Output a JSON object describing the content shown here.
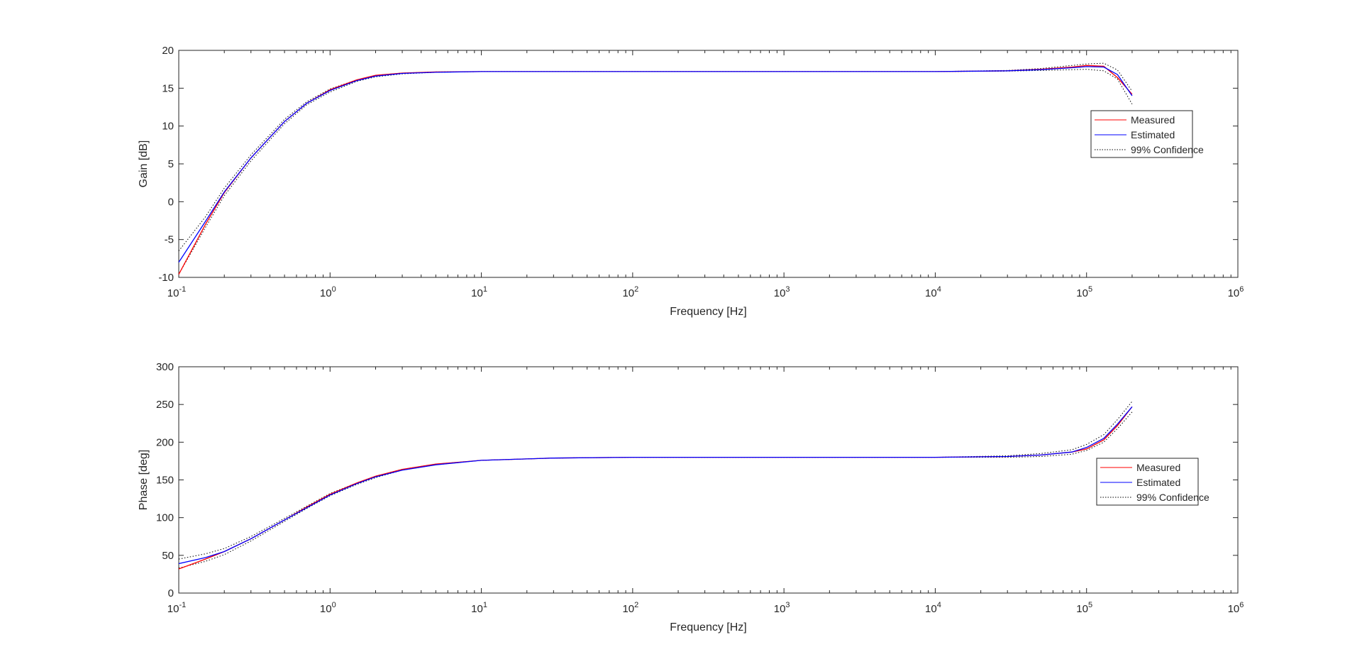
{
  "chart_data": [
    {
      "type": "line",
      "title": "",
      "xlabel": "Frequency [Hz]",
      "ylabel": "Gain [dB]",
      "xscale": "log",
      "xlim": [
        0.1,
        1000000
      ],
      "ylim": [
        -10,
        20
      ],
      "yticks": [
        -10,
        -5,
        0,
        5,
        10,
        15,
        20
      ],
      "xtick_labels": [
        {
          "base": "10",
          "exp": "-1"
        },
        {
          "base": "10",
          "exp": "0"
        },
        {
          "base": "10",
          "exp": "1"
        },
        {
          "base": "10",
          "exp": "2"
        },
        {
          "base": "10",
          "exp": "3"
        },
        {
          "base": "10",
          "exp": "4"
        },
        {
          "base": "10",
          "exp": "5"
        },
        {
          "base": "10",
          "exp": "6"
        }
      ],
      "grid": false,
      "legend_position": "right",
      "legend": [
        "Measured",
        "Estimated",
        "99% Confidence"
      ],
      "x": [
        0.1,
        0.15,
        0.2,
        0.3,
        0.5,
        0.7,
        1,
        1.5,
        2,
        3,
        5,
        10,
        100,
        1000,
        10000,
        30000,
        50000,
        80000,
        100000,
        130000,
        160000,
        200000
      ],
      "series": [
        {
          "name": "Measured",
          "color": "#ff0000",
          "style": "solid",
          "values": [
            -9.6,
            -3.0,
            1.2,
            5.8,
            10.6,
            13.0,
            14.8,
            16.1,
            16.7,
            17.0,
            17.15,
            17.2,
            17.2,
            17.2,
            17.2,
            17.3,
            17.5,
            17.8,
            18.0,
            17.9,
            16.4,
            14.2
          ]
        },
        {
          "name": "Estimated",
          "color": "#0000ff",
          "style": "solid",
          "values": [
            -8.0,
            -2.6,
            1.3,
            5.8,
            10.6,
            13.0,
            14.7,
            16.0,
            16.6,
            16.95,
            17.1,
            17.2,
            17.2,
            17.2,
            17.2,
            17.3,
            17.45,
            17.7,
            17.85,
            17.8,
            16.8,
            14.0
          ]
        },
        {
          "name": "99% Confidence",
          "color": "#000000",
          "style": "dotted",
          "values": [
            -6.5,
            -2.0,
            1.8,
            6.2,
            10.9,
            13.2,
            14.9,
            16.1,
            16.7,
            17.0,
            17.15,
            17.2,
            17.2,
            17.2,
            17.2,
            17.35,
            17.6,
            18.0,
            18.2,
            18.3,
            17.4,
            14.6
          ]
        },
        {
          "name": "",
          "color": "#000000",
          "style": "dotted",
          "values": [
            -9.6,
            -3.4,
            0.8,
            5.4,
            10.3,
            12.8,
            14.5,
            15.9,
            16.5,
            16.9,
            17.1,
            17.2,
            17.2,
            17.2,
            17.2,
            17.25,
            17.35,
            17.45,
            17.5,
            17.3,
            16.2,
            12.9
          ]
        }
      ]
    },
    {
      "type": "line",
      "title": "",
      "xlabel": "Frequency [Hz]",
      "ylabel": "Phase [deg]",
      "xscale": "log",
      "xlim": [
        0.1,
        1000000
      ],
      "ylim": [
        0,
        300
      ],
      "yticks": [
        0,
        50,
        100,
        150,
        200,
        250,
        300
      ],
      "xtick_labels": [
        {
          "base": "10",
          "exp": "-1"
        },
        {
          "base": "10",
          "exp": "0"
        },
        {
          "base": "10",
          "exp": "1"
        },
        {
          "base": "10",
          "exp": "2"
        },
        {
          "base": "10",
          "exp": "3"
        },
        {
          "base": "10",
          "exp": "4"
        },
        {
          "base": "10",
          "exp": "5"
        },
        {
          "base": "10",
          "exp": "6"
        }
      ],
      "grid": false,
      "legend_position": "right",
      "legend": [
        "Measured",
        "Estimated",
        "99% Confidence"
      ],
      "x": [
        0.1,
        0.15,
        0.2,
        0.3,
        0.5,
        0.7,
        1,
        1.5,
        2,
        3,
        5,
        10,
        30,
        100,
        1000,
        10000,
        30000,
        50000,
        80000,
        100000,
        130000,
        160000,
        200000
      ],
      "series": [
        {
          "name": "Measured",
          "color": "#ff0000",
          "style": "solid",
          "values": [
            32,
            45,
            55,
            72,
            97,
            114,
            131,
            146,
            155,
            164,
            171,
            176,
            179,
            180,
            180,
            180,
            181,
            183,
            187,
            191,
            203,
            222,
            247
          ]
        },
        {
          "name": "Estimated",
          "color": "#0000ff",
          "style": "solid",
          "values": [
            39,
            47,
            55,
            72,
            97,
            113,
            130,
            145,
            154,
            163,
            170,
            176,
            179,
            180,
            180,
            180,
            181,
            183,
            187,
            193,
            205,
            224,
            247
          ]
        },
        {
          "name": "99% Confidence",
          "color": "#000000",
          "style": "dotted",
          "values": [
            45,
            52,
            59,
            75,
            99,
            115,
            132,
            146,
            155,
            164,
            171,
            176,
            179,
            180,
            180,
            180,
            182,
            185,
            190,
            197,
            210,
            230,
            254
          ]
        },
        {
          "name": "",
          "color": "#000000",
          "style": "dotted",
          "values": [
            33,
            42,
            51,
            69,
            95,
            112,
            129,
            144,
            153,
            163,
            170,
            176,
            179,
            180,
            180,
            180,
            180,
            181,
            184,
            189,
            200,
            218,
            240
          ]
        }
      ]
    }
  ]
}
